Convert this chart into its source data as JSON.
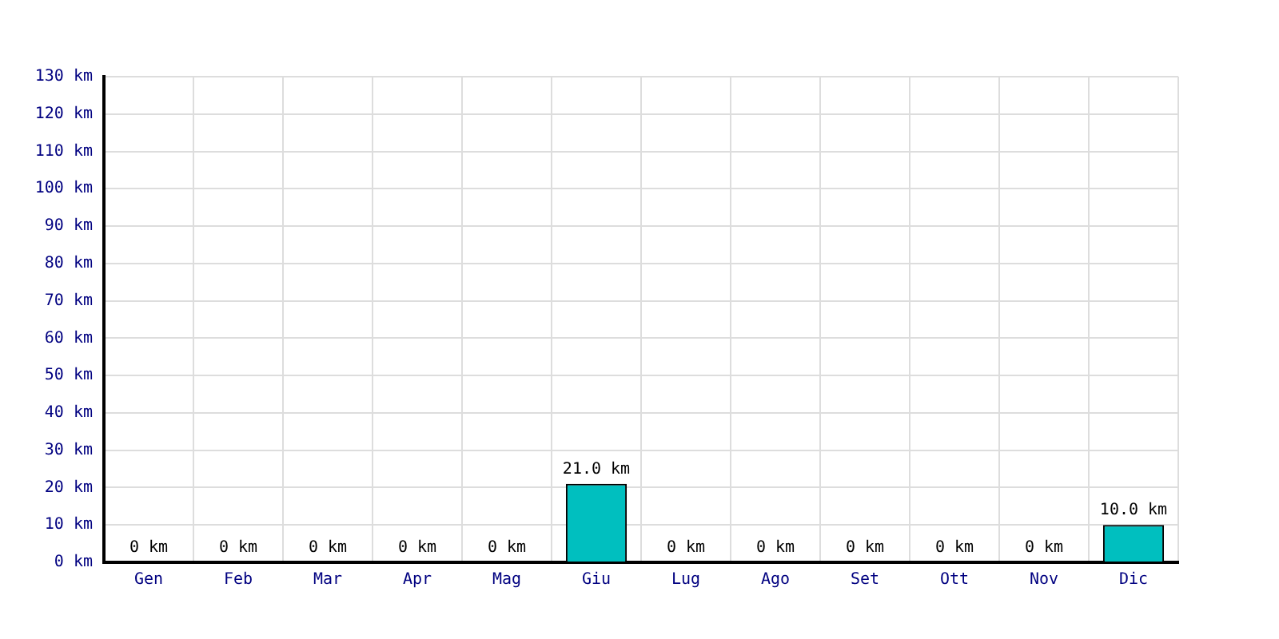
{
  "chart_data": {
    "type": "bar",
    "categories": [
      "Gen",
      "Feb",
      "Mar",
      "Apr",
      "Mag",
      "Giu",
      "Lug",
      "Ago",
      "Set",
      "Ott",
      "Nov",
      "Dic"
    ],
    "values": [
      0,
      0,
      0,
      0,
      0,
      21,
      0,
      0,
      0,
      0,
      0,
      10
    ],
    "value_labels": [
      "0 km",
      "0 km",
      "0 km",
      "0 km",
      "0 km",
      "21.0 km",
      "0 km",
      "0 km",
      "0 km",
      "0 km",
      "0 km",
      "10.0 km"
    ],
    "color": "#00bfbf",
    "ylim": [
      0,
      130
    ],
    "yticks": [
      {
        "value": 0,
        "label": "0 km"
      },
      {
        "value": 10,
        "label": "10 km"
      },
      {
        "value": 20,
        "label": "20 km"
      },
      {
        "value": 30,
        "label": "30 km"
      },
      {
        "value": 40,
        "label": "40 km"
      },
      {
        "value": 50,
        "label": "50 km"
      },
      {
        "value": 60,
        "label": "60 km"
      },
      {
        "value": 70,
        "label": "70 km"
      },
      {
        "value": 80,
        "label": "80 km"
      },
      {
        "value": 90,
        "label": "90 km"
      },
      {
        "value": 100,
        "label": "100 km"
      },
      {
        "value": 110,
        "label": "110 km"
      },
      {
        "value": 120,
        "label": "120 km"
      },
      {
        "value": 130,
        "label": "130 km"
      }
    ],
    "grid": true
  }
}
